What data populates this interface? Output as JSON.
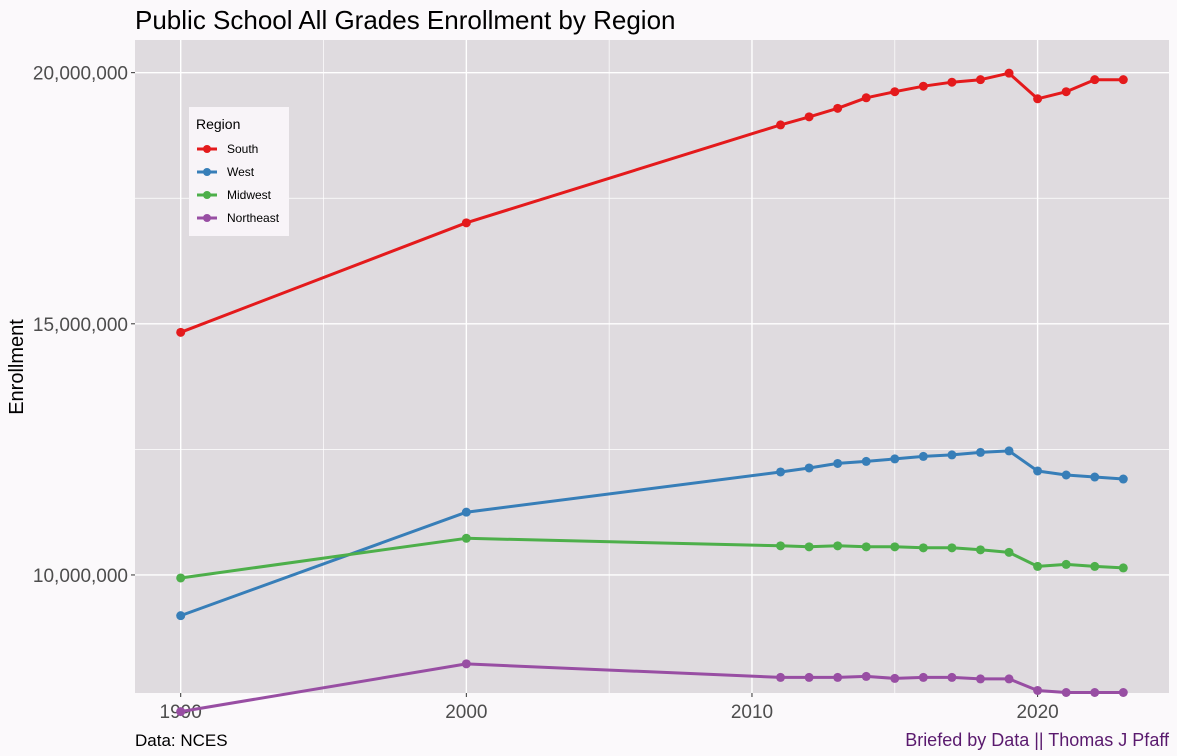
{
  "chart_data": {
    "type": "line",
    "title": "Public School All Grades Enrollment by Region",
    "xlabel": "",
    "ylabel": "Enrollment",
    "x_ticks": [
      1990,
      2000,
      2010,
      2020
    ],
    "y_ticks": [
      10000000,
      15000000,
      20000000
    ],
    "y_tick_labels": [
      "10,000,000",
      "15,000,000",
      "20,000,000"
    ],
    "xlim": [
      1988.4,
      2024.6
    ],
    "ylim": [
      7650000,
      20650000
    ],
    "grid": true,
    "legend": {
      "title": "Region",
      "position": "top-left"
    },
    "x": [
      1990,
      2000,
      2011,
      2012,
      2013,
      2014,
      2015,
      2016,
      2017,
      2018,
      2019,
      2020,
      2021,
      2022,
      2023
    ],
    "series": [
      {
        "name": "South",
        "color": "#e41a1c",
        "values": [
          14830000,
          17010000,
          18960000,
          19120000,
          19290000,
          19500000,
          19620000,
          19730000,
          19810000,
          19860000,
          19990000,
          19480000,
          19620000,
          19860000,
          19860000
        ]
      },
      {
        "name": "West",
        "color": "#377eb8",
        "values": [
          9190000,
          11250000,
          12050000,
          12130000,
          12220000,
          12260000,
          12310000,
          12360000,
          12390000,
          12440000,
          12470000,
          12070000,
          11990000,
          11950000,
          11910000
        ]
      },
      {
        "name": "Midwest",
        "color": "#4daf4a",
        "values": [
          9940000,
          10730000,
          10580000,
          10560000,
          10580000,
          10560000,
          10560000,
          10540000,
          10540000,
          10500000,
          10450000,
          10170000,
          10210000,
          10170000,
          10140000
        ]
      },
      {
        "name": "Northeast",
        "color": "#984ea3",
        "values": [
          7280000,
          8230000,
          7960000,
          7960000,
          7960000,
          7980000,
          7940000,
          7960000,
          7960000,
          7930000,
          7930000,
          7700000,
          7660000,
          7660000,
          7660000
        ]
      }
    ]
  },
  "caption": {
    "source": "Data: NCES",
    "credit": "Briefed by Data || Thomas J Pfaff"
  },
  "colors": {
    "panel_bg": "#dfdbdf",
    "page_bg": "#fbf9fb",
    "grid": "#ffffff"
  }
}
